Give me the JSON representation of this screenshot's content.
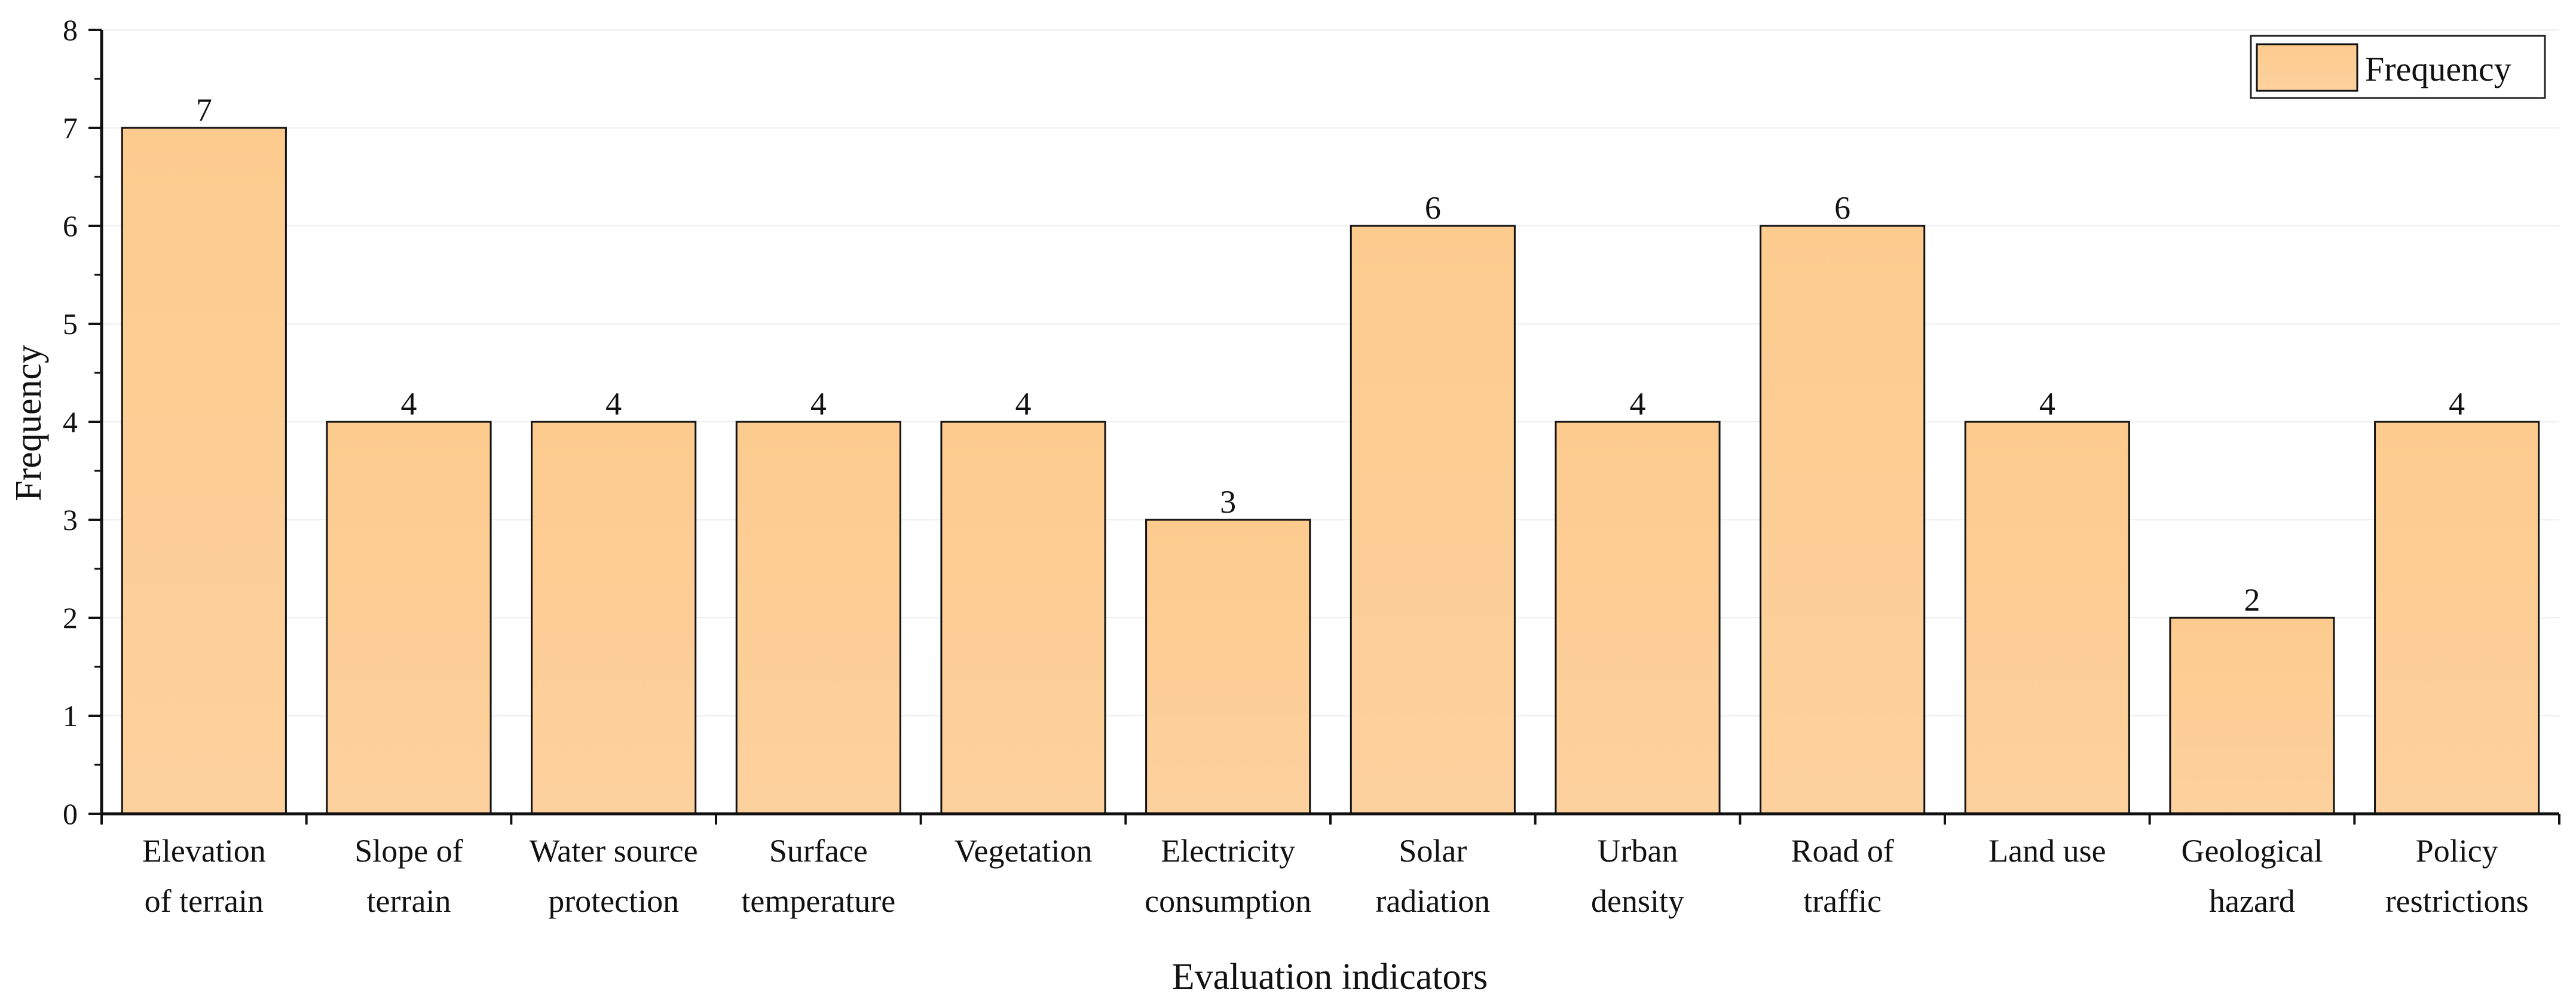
{
  "chart_data": {
    "type": "bar",
    "title": "",
    "xlabel": "Evaluation indicators",
    "ylabel": "Frequency",
    "ylim": [
      0,
      8
    ],
    "yticks": [
      0,
      1,
      2,
      3,
      4,
      5,
      6,
      7,
      8
    ],
    "categories": [
      [
        "Elevation",
        "of terrain"
      ],
      [
        "Slope of",
        "terrain"
      ],
      [
        "Water source",
        "protection"
      ],
      [
        "Surface",
        "temperature"
      ],
      [
        "Vegetation"
      ],
      [
        "Electricity",
        "consumption"
      ],
      [
        "Solar",
        "radiation"
      ],
      [
        "Urban",
        "density"
      ],
      [
        "Road of",
        "traffic"
      ],
      [
        "Land use"
      ],
      [
        "Geological",
        "hazard"
      ],
      [
        "Policy",
        "restrictions"
      ]
    ],
    "series": [
      {
        "name": "Frequency",
        "values": [
          7,
          4,
          4,
          4,
          4,
          3,
          6,
          4,
          6,
          4,
          2,
          4
        ],
        "color": "#FECD92"
      }
    ],
    "legend": {
      "position": "top-right",
      "entries": [
        "Frequency"
      ]
    },
    "data_labels": true,
    "grid": false
  }
}
